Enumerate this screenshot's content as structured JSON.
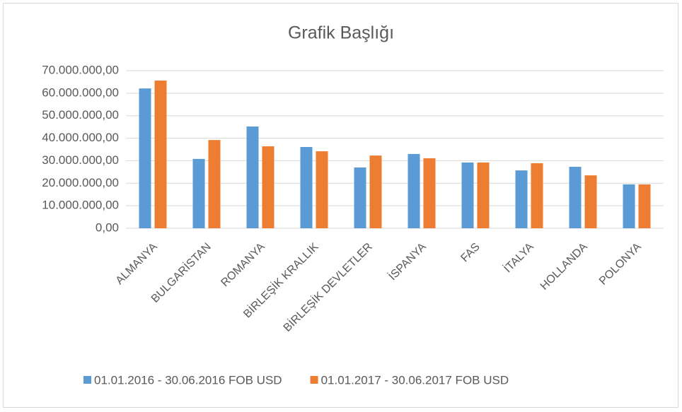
{
  "chart_data": {
    "type": "bar",
    "title": "Grafik Başlığı",
    "categories": [
      "ALMANYA",
      "BULGARİSTAN",
      "ROMANYA",
      "BİRLEŞİK KRALLIK",
      "BİRLEŞİK DEVLETLER",
      "İSPANYA",
      "FAS",
      "İTALYA",
      "HOLLANDA",
      "POLONYA"
    ],
    "series": [
      {
        "name": "01.01.2016 - 30.06.2016 FOB USD",
        "color": "#5b9bd5",
        "values": [
          62100000,
          30800000,
          45200000,
          36100000,
          27000000,
          33000000,
          29200000,
          25700000,
          27300000,
          19500000
        ]
      },
      {
        "name": "01.01.2017 - 30.06.2017 FOB USD",
        "color": "#ed7d31",
        "values": [
          65600000,
          39200000,
          36400000,
          34200000,
          32300000,
          31100000,
          29200000,
          28900000,
          23500000,
          19500000
        ]
      }
    ],
    "ylim": [
      0,
      70000000
    ],
    "yticks": [
      {
        "value": 0,
        "label": "0,00"
      },
      {
        "value": 10000000,
        "label": "10.000.000,00"
      },
      {
        "value": 20000000,
        "label": "20.000.000,00"
      },
      {
        "value": 30000000,
        "label": "30.000.000,00"
      },
      {
        "value": 40000000,
        "label": "40.000.000,00"
      },
      {
        "value": 50000000,
        "label": "50.000.000,00"
      },
      {
        "value": 60000000,
        "label": "60.000.000,00"
      },
      {
        "value": 70000000,
        "label": "70.000.000,00"
      }
    ],
    "grid": true,
    "legend": "bottom"
  }
}
